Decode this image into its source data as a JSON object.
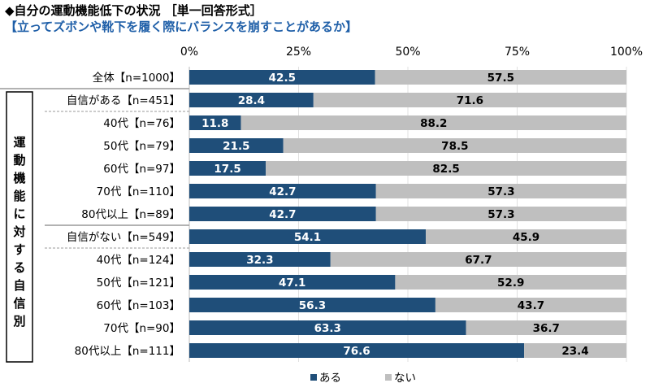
{
  "title": "◆自分の運動機能低下の状況 ［単一回答形式］",
  "subtitle": "【立ってズボンや靴下を履く際にバランスを崩すことがあるか】",
  "chart_data": {
    "type": "bar",
    "orientation": "horizontal-stacked-100",
    "xlim": [
      0,
      100
    ],
    "ticks": [
      "0%",
      "25%",
      "50%",
      "75%",
      "100%"
    ],
    "group_label": "運動機能に対する自信別",
    "categories": [
      "全体【n=1000】",
      "自信がある【n=451】",
      "40代【n=76】",
      "50代【n=79】",
      "60代【n=97】",
      "70代【n=110】",
      "80代以上【n=89】",
      "自信がない【n=549】",
      "40代【n=124】",
      "50代【n=121】",
      "60代【n=103】",
      "70代【n=90】",
      "80代以上【n=111】"
    ],
    "series": [
      {
        "name": "ある",
        "color": "#1f4e79",
        "values": [
          42.5,
          28.4,
          11.8,
          21.5,
          17.5,
          42.7,
          42.7,
          54.1,
          32.3,
          47.1,
          56.3,
          63.3,
          76.6
        ]
      },
      {
        "name": "ない",
        "color": "#bfbfbf",
        "values": [
          57.5,
          71.6,
          88.2,
          78.5,
          82.5,
          57.3,
          57.3,
          45.9,
          67.7,
          52.9,
          43.7,
          36.7,
          23.4
        ]
      }
    ],
    "legend": "bottom"
  }
}
